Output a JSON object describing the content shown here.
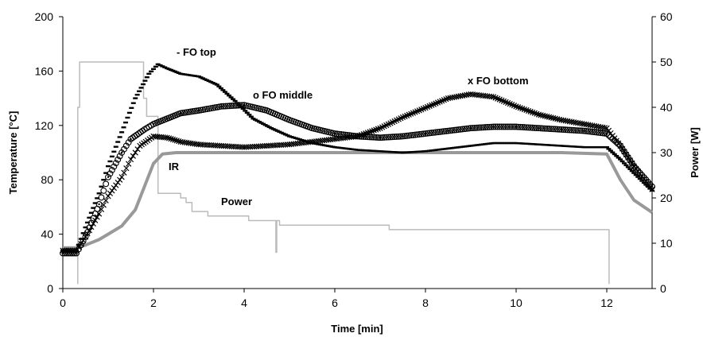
{
  "chart_data": {
    "type": "line",
    "title": "",
    "xlabel": "Time [min]",
    "ylabel_left": "Temperature [°C]",
    "ylabel_right": "Power [W]",
    "xlim": [
      0,
      13
    ],
    "ylim_left": [
      0,
      200
    ],
    "ylim_right": [
      0,
      60
    ],
    "x_ticks": [
      0,
      2,
      4,
      6,
      8,
      10,
      12
    ],
    "y_left_ticks": [
      0,
      40,
      80,
      120,
      160,
      200
    ],
    "y_right_ticks": [
      0,
      10,
      20,
      30,
      40,
      50,
      60
    ],
    "grid": false,
    "legend": "none",
    "annotations": [
      {
        "text": "- FO top",
        "series": "FO top"
      },
      {
        "text": "o FO middle",
        "series": "FO middle"
      },
      {
        "text": "x FO bottom",
        "series": "FO bottom"
      },
      {
        "text": "IR",
        "series": "IR"
      },
      {
        "text": "Power",
        "series": "Power"
      }
    ],
    "series": [
      {
        "name": "FO top",
        "axis": "left",
        "marker": "dash",
        "color": "#000000",
        "x": [
          0,
          0.3,
          0.5,
          0.8,
          1.0,
          1.3,
          1.6,
          1.9,
          2.1,
          2.3,
          2.6,
          3.0,
          3.4,
          3.8,
          4.2,
          4.6,
          5.0,
          5.5,
          6.0,
          6.5,
          7.0,
          7.5,
          8.0,
          8.5,
          9.0,
          9.5,
          10.0,
          10.5,
          11.0,
          11.5,
          12.0,
          12.3,
          12.6,
          13.0
        ],
        "y": [
          28,
          28,
          45,
          70,
          90,
          115,
          140,
          158,
          165,
          162,
          158,
          156,
          150,
          138,
          125,
          118,
          112,
          107,
          104,
          102,
          101,
          100,
          101,
          103,
          105,
          107,
          107,
          106,
          105,
          104,
          104,
          95,
          85,
          72
        ]
      },
      {
        "name": "FO middle",
        "axis": "left",
        "marker": "circle",
        "color": "#000000",
        "x": [
          0,
          0.3,
          0.5,
          0.8,
          1.0,
          1.3,
          1.5,
          1.8,
          2.0,
          2.3,
          2.6,
          3.0,
          3.5,
          4.0,
          4.5,
          5.0,
          5.5,
          6.0,
          6.5,
          7.0,
          7.5,
          8.0,
          8.5,
          9.0,
          9.5,
          10.0,
          10.5,
          11.0,
          11.5,
          12.0,
          12.3,
          12.6,
          13.0
        ],
        "y": [
          26,
          26,
          38,
          62,
          82,
          100,
          110,
          117,
          121,
          125,
          129,
          131,
          134,
          135,
          131,
          124,
          118,
          114,
          112,
          111,
          112,
          114,
          116,
          118,
          119,
          119,
          118,
          117,
          116,
          114,
          105,
          90,
          75
        ]
      },
      {
        "name": "FO bottom",
        "axis": "left",
        "marker": "x",
        "color": "#000000",
        "x": [
          0,
          0.3,
          0.5,
          0.8,
          1.0,
          1.3,
          1.5,
          1.7,
          2.0,
          2.3,
          2.6,
          3.0,
          3.5,
          4.0,
          4.5,
          5.0,
          5.5,
          6.0,
          6.5,
          7.0,
          7.5,
          8.0,
          8.5,
          9.0,
          9.5,
          10.0,
          10.5,
          11.0,
          11.5,
          12.0,
          12.3,
          12.6,
          13.0
        ],
        "y": [
          28,
          28,
          38,
          55,
          68,
          82,
          95,
          105,
          112,
          111,
          108,
          106,
          105,
          104,
          105,
          106,
          108,
          110,
          112,
          118,
          126,
          133,
          140,
          143,
          141,
          134,
          128,
          124,
          121,
          118,
          105,
          90,
          73
        ]
      },
      {
        "name": "IR",
        "axis": "left",
        "marker": "none",
        "color": "#999999",
        "x": [
          0,
          0.3,
          0.5,
          0.8,
          1.0,
          1.3,
          1.6,
          1.8,
          2.0,
          2.2,
          2.5,
          3.0,
          4.0,
          5.0,
          6.0,
          7.0,
          8.0,
          9.0,
          10.0,
          11.0,
          12.0,
          12.3,
          12.6,
          13.0
        ],
        "y": [
          30,
          30,
          32,
          36,
          40,
          46,
          58,
          75,
          92,
          99,
          100,
          100,
          100,
          100,
          100,
          100,
          100,
          100,
          100,
          100,
          99,
          80,
          65,
          56
        ]
      },
      {
        "name": "Power",
        "axis": "right",
        "marker": "none",
        "color": "#bbbbbb",
        "x": [
          0.33,
          0.33,
          0.37,
          0.37,
          1.78,
          1.78,
          1.85,
          1.85,
          2.1,
          2.1,
          2.6,
          2.6,
          2.72,
          2.72,
          2.85,
          2.85,
          3.2,
          3.2,
          4.1,
          4.1,
          4.7,
          4.7,
          4.72,
          4.72,
          4.78,
          4.78,
          7.2,
          7.2,
          12.05,
          12.05
        ],
        "y": [
          1,
          40,
          40,
          50,
          50,
          42,
          42,
          38,
          38,
          21,
          21,
          20,
          20,
          19,
          19,
          17,
          17,
          16,
          16,
          15,
          15,
          8,
          8,
          15,
          15,
          14,
          14,
          13,
          13,
          1
        ]
      }
    ]
  }
}
